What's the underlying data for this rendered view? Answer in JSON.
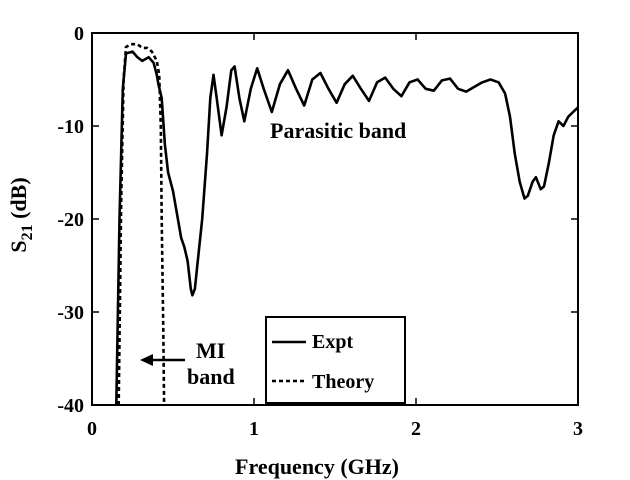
{
  "chart_data": {
    "type": "line",
    "xlabel": "Frequency (GHz)",
    "ylabel_main": "S",
    "ylabel_sub": "21",
    "ylabel_unit": " (dB)",
    "xlim": [
      0,
      3
    ],
    "ylim": [
      -40,
      0
    ],
    "xticks": [
      0,
      1,
      2,
      3
    ],
    "xtick_labels": [
      "0",
      "1",
      "2",
      "3"
    ],
    "yticks": [
      -40,
      -30,
      -20,
      -10,
      0
    ],
    "ytick_labels": [
      "-40",
      "-30",
      "-20",
      "-10",
      "0"
    ],
    "grid": false,
    "legend_position": "bottom-center",
    "series": [
      {
        "name": "Expt",
        "style": "solid",
        "color": "#000000",
        "points": [
          [
            0.15,
            -40
          ],
          [
            0.17,
            -20
          ],
          [
            0.19,
            -6
          ],
          [
            0.21,
            -2.2
          ],
          [
            0.25,
            -2.0
          ],
          [
            0.28,
            -2.6
          ],
          [
            0.31,
            -3.0
          ],
          [
            0.35,
            -2.6
          ],
          [
            0.38,
            -3.2
          ],
          [
            0.4,
            -4.5
          ],
          [
            0.41,
            -5.5
          ],
          [
            0.43,
            -7
          ],
          [
            0.45,
            -12
          ],
          [
            0.47,
            -15
          ],
          [
            0.5,
            -17
          ],
          [
            0.53,
            -20
          ],
          [
            0.55,
            -22
          ],
          [
            0.57,
            -23
          ],
          [
            0.59,
            -24.5
          ],
          [
            0.61,
            -27.5
          ],
          [
            0.62,
            -28.2
          ],
          [
            0.635,
            -27.5
          ],
          [
            0.65,
            -25
          ],
          [
            0.68,
            -20
          ],
          [
            0.71,
            -13
          ],
          [
            0.73,
            -7
          ],
          [
            0.75,
            -4.5
          ],
          [
            0.77,
            -7
          ],
          [
            0.8,
            -11
          ],
          [
            0.83,
            -8
          ],
          [
            0.86,
            -4
          ],
          [
            0.88,
            -3.6
          ],
          [
            0.91,
            -7
          ],
          [
            0.94,
            -9.5
          ],
          [
            0.98,
            -6
          ],
          [
            1.02,
            -3.8
          ],
          [
            1.06,
            -6
          ],
          [
            1.11,
            -8.5
          ],
          [
            1.16,
            -5.5
          ],
          [
            1.21,
            -4.0
          ],
          [
            1.26,
            -6
          ],
          [
            1.31,
            -7.8
          ],
          [
            1.36,
            -5
          ],
          [
            1.41,
            -4.3
          ],
          [
            1.46,
            -6
          ],
          [
            1.51,
            -7.5
          ],
          [
            1.56,
            -5.5
          ],
          [
            1.61,
            -4.6
          ],
          [
            1.66,
            -6
          ],
          [
            1.71,
            -7.3
          ],
          [
            1.76,
            -5.3
          ],
          [
            1.81,
            -4.8
          ],
          [
            1.86,
            -6
          ],
          [
            1.91,
            -6.8
          ],
          [
            1.96,
            -5.3
          ],
          [
            2.01,
            -5.0
          ],
          [
            2.06,
            -6
          ],
          [
            2.11,
            -6.2
          ],
          [
            2.16,
            -5.1
          ],
          [
            2.21,
            -4.9
          ],
          [
            2.26,
            -6.0
          ],
          [
            2.31,
            -6.3
          ],
          [
            2.36,
            -5.8
          ],
          [
            2.41,
            -5.3
          ],
          [
            2.46,
            -5.0
          ],
          [
            2.51,
            -5.3
          ],
          [
            2.55,
            -6.5
          ],
          [
            2.58,
            -9
          ],
          [
            2.61,
            -13
          ],
          [
            2.64,
            -16
          ],
          [
            2.67,
            -17.8
          ],
          [
            2.69,
            -17.5
          ],
          [
            2.72,
            -16
          ],
          [
            2.74,
            -15.5
          ],
          [
            2.77,
            -16.8
          ],
          [
            2.79,
            -16.5
          ],
          [
            2.82,
            -14
          ],
          [
            2.85,
            -11
          ],
          [
            2.88,
            -9.5
          ],
          [
            2.91,
            -10
          ],
          [
            2.94,
            -9
          ],
          [
            2.97,
            -8.5
          ],
          [
            3.0,
            -8
          ]
        ]
      },
      {
        "name": "Theory",
        "style": "dashed",
        "color": "#000000",
        "points": [
          [
            0.165,
            -40
          ],
          [
            0.18,
            -18
          ],
          [
            0.195,
            -5
          ],
          [
            0.21,
            -1.5
          ],
          [
            0.24,
            -1.2
          ],
          [
            0.28,
            -1.2
          ],
          [
            0.31,
            -1.6
          ],
          [
            0.34,
            -1.6
          ],
          [
            0.37,
            -2.0
          ],
          [
            0.4,
            -3.0
          ],
          [
            0.415,
            -4.5
          ],
          [
            0.425,
            -10
          ],
          [
            0.43,
            -20
          ],
          [
            0.44,
            -32
          ],
          [
            0.445,
            -40
          ]
        ]
      }
    ],
    "annotations": [
      {
        "text": "Parasitic band"
      },
      {
        "line1": "MI",
        "line2": "band"
      }
    ]
  }
}
